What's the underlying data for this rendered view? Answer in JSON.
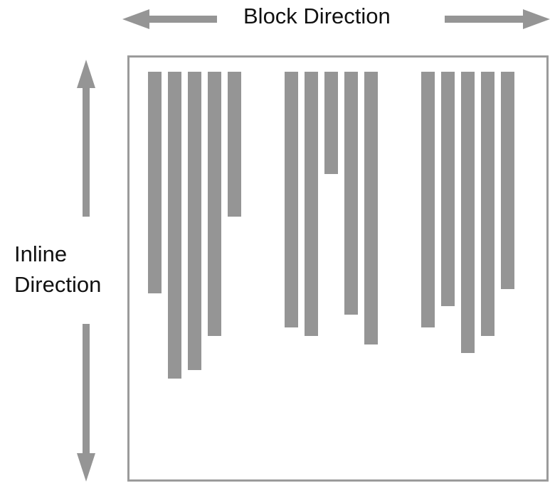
{
  "labels": {
    "block_direction": "Block Direction",
    "inline_direction_line1": "Inline",
    "inline_direction_line2": "Direction"
  },
  "colors": {
    "bar": "#959595",
    "arrow": "#959595",
    "frame": "#9b9b9b"
  },
  "groups": [
    {
      "name": "group-1",
      "line_lengths": [
        0.52,
        0.72,
        0.7,
        0.62,
        0.34
      ]
    },
    {
      "name": "group-2",
      "line_lengths": [
        0.6,
        0.62,
        0.24,
        0.57,
        0.64
      ]
    },
    {
      "name": "group-3",
      "line_lengths": [
        0.6,
        0.55,
        0.66,
        0.62,
        0.51
      ]
    }
  ]
}
